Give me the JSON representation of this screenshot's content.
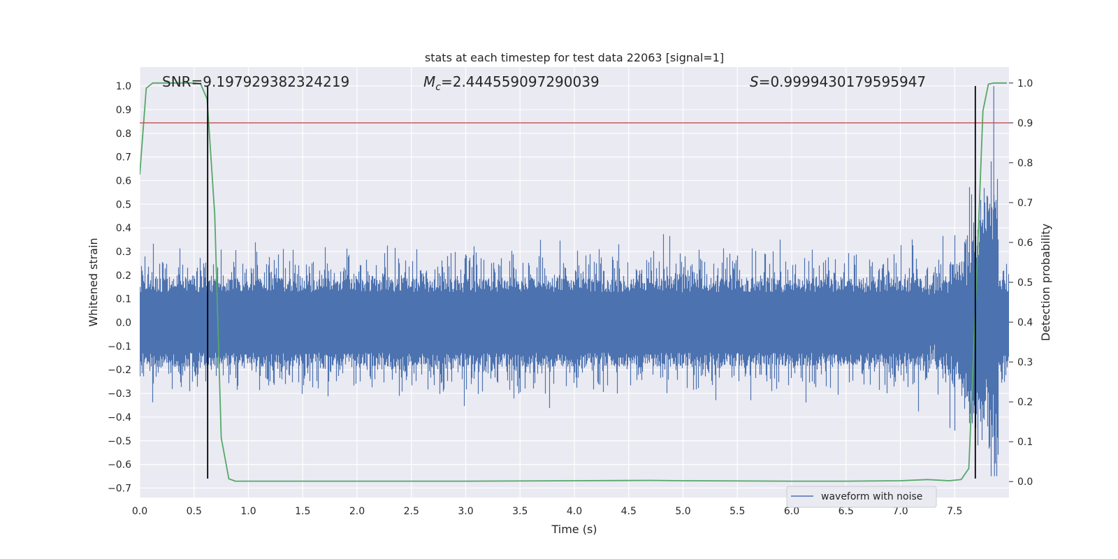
{
  "chart_data": {
    "type": "line",
    "title": "stats at each timestep for test data 22063 [signal=1]",
    "xlabel": "Time (s)",
    "ylabel": "Whitened strain",
    "y2label": "Detection probability",
    "xlim": [
      0.0,
      8.0
    ],
    "ylim": [
      -0.74,
      1.08
    ],
    "y2lim": [
      -0.04,
      1.04
    ],
    "xticks": [
      0.0,
      0.5,
      1.0,
      1.5,
      2.0,
      2.5,
      3.0,
      3.5,
      4.0,
      4.5,
      5.0,
      5.5,
      6.0,
      6.5,
      7.0,
      7.5
    ],
    "xtick_labels": [
      "0.0",
      "0.5",
      "1.0",
      "1.5",
      "2.0",
      "2.5",
      "3.0",
      "3.5",
      "4.0",
      "4.5",
      "5.0",
      "5.5",
      "6.0",
      "6.5",
      "7.0",
      "7.5"
    ],
    "yticks": [
      1.0,
      0.9,
      0.8,
      0.7,
      0.6,
      0.5,
      0.4,
      0.3,
      0.2,
      0.1,
      0.0,
      -0.1,
      -0.2,
      -0.3,
      -0.4,
      -0.5,
      -0.6,
      -0.7
    ],
    "ytick_labels": [
      "1.0",
      "0.9",
      "0.8",
      "0.7",
      "0.6",
      "0.5",
      "0.4",
      "0.3",
      "0.2",
      "0.1",
      "0.0",
      "−0.1",
      "−0.2",
      "−0.3",
      "−0.4",
      "−0.5",
      "−0.6",
      "−0.7"
    ],
    "y2ticks": [
      1.0,
      0.9,
      0.8,
      0.7,
      0.6,
      0.5,
      0.4,
      0.3,
      0.2,
      0.1,
      0.0
    ],
    "y2tick_labels": [
      "1.0",
      "0.9",
      "0.8",
      "0.7",
      "0.6",
      "0.5",
      "0.4",
      "0.3",
      "0.2",
      "0.1",
      "0.0"
    ],
    "grid": true,
    "legend_position": "lower-right",
    "annotations": {
      "snr": "SNR=9.197929382324219",
      "mc_symbol": "M",
      "mc_subscript": "c",
      "mc_value": "=2.444559097290039",
      "s_symbol": "S",
      "s_value": "=0.9999430179595947"
    },
    "series": [
      {
        "name": "waveform with noise",
        "axis": "left",
        "color": "#4c72b0",
        "kind": "noise",
        "sample_rate_hz": 2048,
        "duration_s": 8.0,
        "typical_amplitude": 0.17,
        "max_value": 1.0,
        "min_value": -0.65
      },
      {
        "axis": "right",
        "color": "#55a868",
        "x": [
          0.0,
          0.06,
          0.12,
          0.2,
          0.3,
          0.4,
          0.5,
          0.56,
          0.62,
          0.69,
          0.75,
          0.82,
          0.88,
          1.0,
          2.0,
          3.0,
          4.0,
          4.7,
          5.0,
          6.0,
          6.5,
          7.0,
          7.25,
          7.45,
          7.56,
          7.63,
          7.7,
          7.76,
          7.81,
          7.86,
          7.9,
          7.94,
          7.98
        ],
        "y": [
          0.77,
          0.987,
          1.0,
          1.0,
          1.0,
          1.0,
          1.0,
          0.998,
          0.96,
          0.67,
          0.11,
          0.007,
          0.001,
          0.001,
          0.001,
          0.001,
          0.002,
          0.003,
          0.002,
          0.001,
          0.001,
          0.002,
          0.005,
          0.002,
          0.005,
          0.033,
          0.5,
          0.93,
          0.997,
          1.0,
          1.0,
          1.0,
          1.0
        ]
      }
    ],
    "hlines": [
      {
        "axis": "right",
        "y": 0.9,
        "color": "#c44e52"
      }
    ],
    "vlines": [
      {
        "x": 0.625,
        "ymin": -0.66,
        "ymax": 1.0,
        "color": "#000000"
      },
      {
        "x": 7.69,
        "ymin": -0.66,
        "ymax": 1.0,
        "color": "#000000"
      }
    ],
    "styles": {
      "plot_background": "#eaeaf2",
      "grid_color": "#ffffff",
      "text_color": "#262626"
    }
  }
}
